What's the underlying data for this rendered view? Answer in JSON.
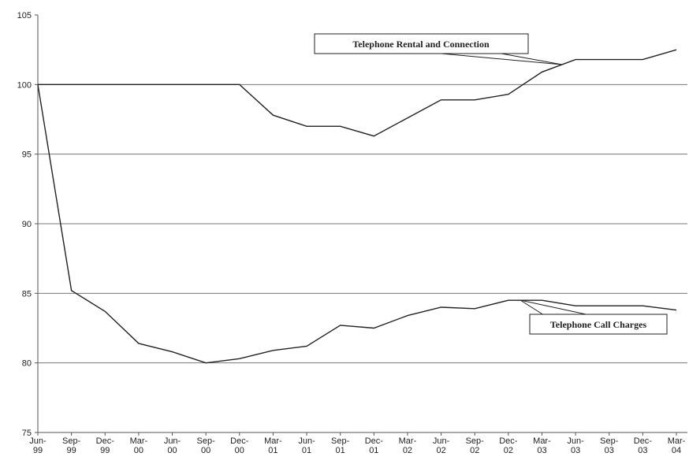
{
  "chart_data": {
    "type": "line",
    "categories": [
      "Jun-99",
      "Sep-99",
      "Dec-99",
      "Mar-00",
      "Jun-00",
      "Sep-00",
      "Dec-00",
      "Mar-01",
      "Jun-01",
      "Sep-01",
      "Dec-01",
      "Mar-02",
      "Jun-02",
      "Sep-02",
      "Dec-02",
      "Mar-03",
      "Jun-03",
      "Sep-03",
      "Dec-03",
      "Mar-04"
    ],
    "series": [
      {
        "name": "Telephone Rental and Connection",
        "color": "#222222",
        "values": [
          100,
          100,
          100,
          100,
          100,
          100,
          100,
          97.8,
          97.0,
          97.0,
          96.3,
          97.6,
          98.9,
          98.9,
          99.3,
          100.9,
          101.8,
          101.8,
          101.8,
          102.5
        ]
      },
      {
        "name": "Telephone Call Charges",
        "color": "#222222",
        "values": [
          100,
          85.2,
          83.7,
          81.4,
          80.8,
          80.0,
          80.3,
          80.9,
          81.2,
          82.7,
          82.5,
          83.4,
          84.0,
          83.9,
          84.5,
          84.5,
          84.1,
          84.1,
          84.1,
          83.8
        ]
      }
    ],
    "ylim": [
      75,
      105
    ],
    "yticks": [
      75,
      80,
      85,
      90,
      95,
      100,
      105
    ],
    "grid": true
  }
}
